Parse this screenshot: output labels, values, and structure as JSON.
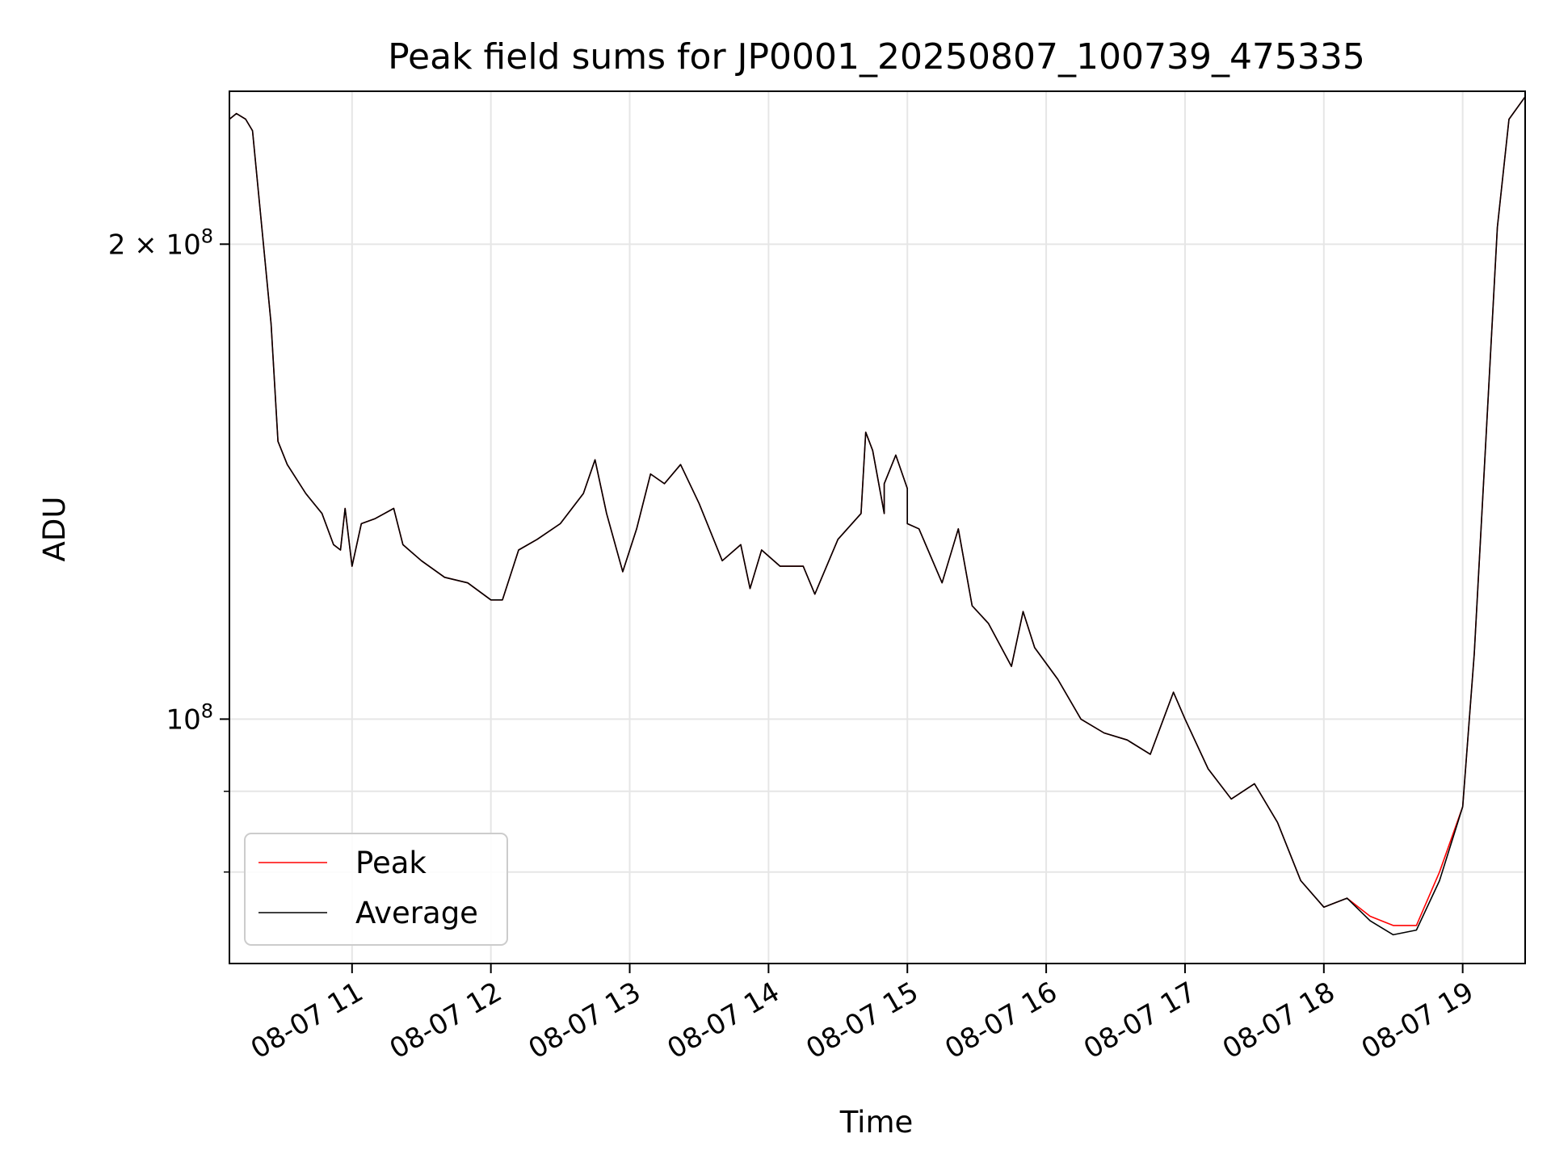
{
  "chart_data": {
    "type": "line",
    "title": "Peak field sums for JP0001_20250807_100739_475335",
    "xlabel": "Time",
    "ylabel": "ADU",
    "yscale": "log",
    "xlim": [
      "2025-08-07 10:07",
      "2025-08-07 19:27"
    ],
    "ylim": [
      70000000,
      250000000
    ],
    "grid": true,
    "legend_position": "lower-left",
    "x_ticks": [
      "08-07 11",
      "08-07 12",
      "08-07 13",
      "08-07 14",
      "08-07 15",
      "08-07 16",
      "08-07 17",
      "08-07 18",
      "08-07 19"
    ],
    "x_tick_hours": [
      11,
      12,
      13,
      14,
      15,
      16,
      17,
      18,
      19
    ],
    "y_major_ticks": [
      {
        "value": 200000000,
        "mantissa": "2",
        "times": "×",
        "base": "10",
        "exp": "8"
      },
      {
        "value": 100000000,
        "mantissa": "",
        "times": "",
        "base": "10",
        "exp": "8"
      }
    ],
    "y_minor_ticks": [
      90000000,
      80000000
    ],
    "series": [
      {
        "name": "Peak",
        "color": "#ff0000",
        "points": [
          [
            "10:07",
            240000000
          ],
          [
            "10:10",
            242000000
          ],
          [
            "10:14",
            240000000
          ],
          [
            "10:17",
            236000000
          ],
          [
            "10:21",
            205000000
          ],
          [
            "10:25",
            178000000
          ],
          [
            "10:28",
            150000000
          ],
          [
            "10:32",
            145000000
          ],
          [
            "10:40",
            139000000
          ],
          [
            "10:47",
            135000000
          ],
          [
            "10:52",
            129000000
          ],
          [
            "10:55",
            128000000
          ],
          [
            "10:57",
            136000000
          ],
          [
            "11:00",
            125000000
          ],
          [
            "11:04",
            133000000
          ],
          [
            "11:10",
            134000000
          ],
          [
            "11:18",
            136000000
          ],
          [
            "11:22",
            129000000
          ],
          [
            "11:30",
            126000000
          ],
          [
            "11:40",
            123000000
          ],
          [
            "11:50",
            122000000
          ],
          [
            "12:00",
            119000000
          ],
          [
            "12:05",
            119000000
          ],
          [
            "12:12",
            128000000
          ],
          [
            "12:20",
            130000000
          ],
          [
            "12:30",
            133000000
          ],
          [
            "12:40",
            139000000
          ],
          [
            "12:45",
            146000000
          ],
          [
            "12:50",
            135000000
          ],
          [
            "12:57",
            124000000
          ],
          [
            "13:03",
            132000000
          ],
          [
            "13:09",
            143000000
          ],
          [
            "13:15",
            141000000
          ],
          [
            "13:22",
            145000000
          ],
          [
            "13:30",
            137000000
          ],
          [
            "13:40",
            126000000
          ],
          [
            "13:48",
            129000000
          ],
          [
            "13:52",
            121000000
          ],
          [
            "13:57",
            128000000
          ],
          [
            "14:05",
            125000000
          ],
          [
            "14:15",
            125000000
          ],
          [
            "14:20",
            120000000
          ],
          [
            "14:30",
            130000000
          ],
          [
            "14:40",
            135000000
          ],
          [
            "14:50",
            135000000
          ],
          [
            "15:00",
            140000000
          ],
          [
            "14:42",
            152000000
          ],
          [
            "14:45",
            148000000
          ],
          [
            "14:50",
            141000000
          ],
          [
            "14:55",
            147000000
          ],
          [
            "15:00",
            133000000
          ],
          [
            "15:05",
            132000000
          ],
          [
            "15:15",
            122000000
          ],
          [
            "15:22",
            132000000
          ],
          [
            "15:28",
            118000000
          ],
          [
            "15:35",
            115000000
          ],
          [
            "15:45",
            108000000
          ],
          [
            "15:50",
            117000000
          ],
          [
            "15:55",
            111000000
          ],
          [
            "16:05",
            106000000
          ],
          [
            "16:15",
            100000000
          ],
          [
            "16:25",
            98000000
          ],
          [
            "16:35",
            97000000
          ],
          [
            "16:45",
            95000000
          ],
          [
            "16:55",
            104000000
          ],
          [
            "17:00",
            100000000
          ],
          [
            "17:10",
            93000000
          ],
          [
            "17:20",
            89000000
          ],
          [
            "17:30",
            91000000
          ],
          [
            "17:40",
            86000000
          ],
          [
            "17:50",
            79000000
          ],
          [
            "18:00",
            76000000
          ],
          [
            "18:10",
            77000000
          ],
          [
            "18:20",
            75000000
          ],
          [
            "18:30",
            74000000
          ],
          [
            "18:40",
            74000000
          ],
          [
            "18:50",
            80000000
          ],
          [
            "19:00",
            88000000
          ],
          [
            "19:05",
            110000000
          ],
          [
            "19:10",
            150000000
          ],
          [
            "19:15",
            205000000
          ],
          [
            "19:20",
            240000000
          ],
          [
            "19:27",
            248000000
          ]
        ]
      },
      {
        "name": "Average",
        "color": "#000000",
        "points": [
          [
            "10:07",
            240000000
          ],
          [
            "10:10",
            242000000
          ],
          [
            "10:14",
            240000000
          ],
          [
            "10:17",
            236000000
          ],
          [
            "10:21",
            205000000
          ],
          [
            "10:25",
            178000000
          ],
          [
            "10:28",
            150000000
          ],
          [
            "10:32",
            145000000
          ],
          [
            "10:40",
            139000000
          ],
          [
            "10:47",
            135000000
          ],
          [
            "10:52",
            129000000
          ],
          [
            "10:55",
            128000000
          ],
          [
            "10:57",
            136000000
          ],
          [
            "11:00",
            125000000
          ],
          [
            "11:04",
            133000000
          ],
          [
            "11:10",
            134000000
          ],
          [
            "11:18",
            136000000
          ],
          [
            "11:22",
            129000000
          ],
          [
            "11:30",
            126000000
          ],
          [
            "11:40",
            123000000
          ],
          [
            "11:50",
            122000000
          ],
          [
            "12:00",
            119000000
          ],
          [
            "12:05",
            119000000
          ],
          [
            "12:12",
            128000000
          ],
          [
            "12:20",
            130000000
          ],
          [
            "12:30",
            133000000
          ],
          [
            "12:40",
            139000000
          ],
          [
            "12:45",
            146000000
          ],
          [
            "12:50",
            135000000
          ],
          [
            "12:57",
            124000000
          ],
          [
            "13:03",
            132000000
          ],
          [
            "13:09",
            143000000
          ],
          [
            "13:15",
            141000000
          ],
          [
            "13:22",
            145000000
          ],
          [
            "13:30",
            137000000
          ],
          [
            "13:40",
            126000000
          ],
          [
            "13:48",
            129000000
          ],
          [
            "13:52",
            121000000
          ],
          [
            "13:57",
            128000000
          ],
          [
            "14:05",
            125000000
          ],
          [
            "14:15",
            125000000
          ],
          [
            "14:20",
            120000000
          ],
          [
            "14:30",
            130000000
          ],
          [
            "14:40",
            135000000
          ],
          [
            "14:50",
            135000000
          ],
          [
            "15:00",
            140000000
          ],
          [
            "14:42",
            152000000
          ],
          [
            "14:45",
            148000000
          ],
          [
            "14:50",
            141000000
          ],
          [
            "14:55",
            147000000
          ],
          [
            "15:00",
            133000000
          ],
          [
            "15:05",
            132000000
          ],
          [
            "15:15",
            122000000
          ],
          [
            "15:22",
            132000000
          ],
          [
            "15:28",
            118000000
          ],
          [
            "15:35",
            115000000
          ],
          [
            "15:45",
            108000000
          ],
          [
            "15:50",
            117000000
          ],
          [
            "15:55",
            111000000
          ],
          [
            "16:05",
            106000000
          ],
          [
            "16:15",
            100000000
          ],
          [
            "16:25",
            98000000
          ],
          [
            "16:35",
            97000000
          ],
          [
            "16:45",
            95000000
          ],
          [
            "16:55",
            104000000
          ],
          [
            "17:00",
            100000000
          ],
          [
            "17:10",
            93000000
          ],
          [
            "17:20",
            89000000
          ],
          [
            "17:30",
            91000000
          ],
          [
            "17:40",
            86000000
          ],
          [
            "17:50",
            79000000
          ],
          [
            "18:00",
            76000000
          ],
          [
            "18:10",
            77000000
          ],
          [
            "18:20",
            74500000
          ],
          [
            "18:30",
            73000000
          ],
          [
            "18:40",
            73500000
          ],
          [
            "18:50",
            79000000
          ],
          [
            "19:00",
            88000000
          ],
          [
            "19:05",
            110000000
          ],
          [
            "19:10",
            150000000
          ],
          [
            "19:15",
            205000000
          ],
          [
            "19:20",
            240000000
          ],
          [
            "19:27",
            248000000
          ]
        ]
      }
    ]
  }
}
